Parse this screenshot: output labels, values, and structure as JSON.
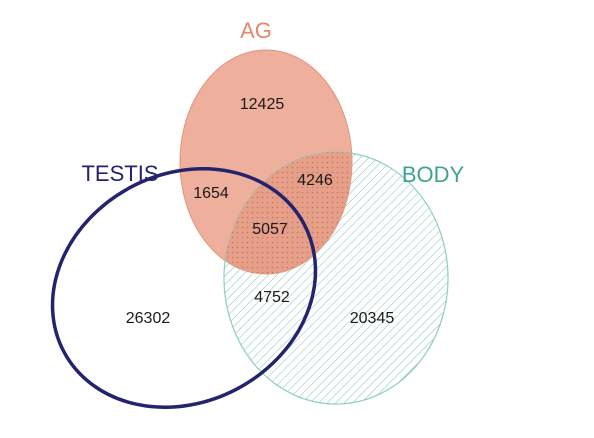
{
  "sets": {
    "ag": {
      "label": "AG",
      "color": "#e98668",
      "fill": "#eeb09c"
    },
    "body": {
      "label": "BODY",
      "color": "#3fa48c",
      "fill": "#3fa48c"
    },
    "testis": {
      "label": "TESTIS",
      "color": "#23236e"
    }
  },
  "regions": {
    "ag_only": "12425",
    "ag_body": "4246",
    "ag_testis": "1654",
    "all_three": "5057",
    "testis_body": "4752",
    "testis_only": "26302",
    "body_only": "20345"
  }
}
